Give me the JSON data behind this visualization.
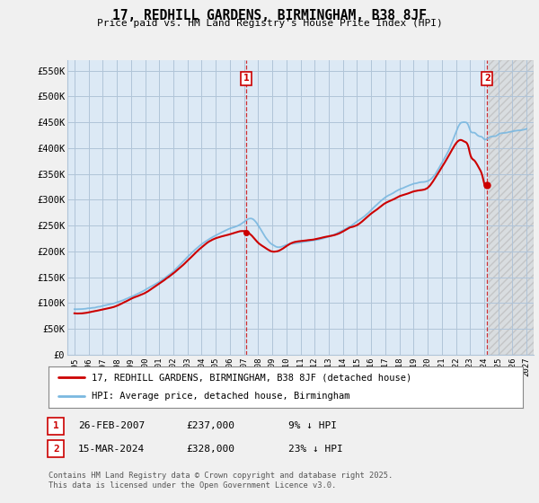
{
  "title": "17, REDHILL GARDENS, BIRMINGHAM, B38 8JF",
  "subtitle": "Price paid vs. HM Land Registry's House Price Index (HPI)",
  "ylabel_ticks": [
    "£0",
    "£50K",
    "£100K",
    "£150K",
    "£200K",
    "£250K",
    "£300K",
    "£350K",
    "£400K",
    "£450K",
    "£500K",
    "£550K"
  ],
  "ytick_values": [
    0,
    50000,
    100000,
    150000,
    200000,
    250000,
    300000,
    350000,
    400000,
    450000,
    500000,
    550000
  ],
  "ylim": [
    0,
    570000
  ],
  "xlim_start": 1994.5,
  "xlim_end": 2027.5,
  "bg_color": "#f0f0f0",
  "plot_bg_color": "#dce9f5",
  "future_bg_color": "#e8e8e8",
  "grid_color": "#b0c4d8",
  "hpi_color": "#7ab8e0",
  "price_color": "#cc0000",
  "marker1_x": 2007.15,
  "marker1_y": 237000,
  "marker2_x": 2024.21,
  "marker2_y": 328000,
  "legend_label1": "17, REDHILL GARDENS, BIRMINGHAM, B38 8JF (detached house)",
  "legend_label2": "HPI: Average price, detached house, Birmingham",
  "table_row1": [
    "1",
    "26-FEB-2007",
    "£237,000",
    "9% ↓ HPI"
  ],
  "table_row2": [
    "2",
    "15-MAR-2024",
    "£328,000",
    "23% ↓ HPI"
  ],
  "footer": "Contains HM Land Registry data © Crown copyright and database right 2025.\nThis data is licensed under the Open Government Licence v3.0.",
  "xtick_years": [
    1995,
    1996,
    1997,
    1998,
    1999,
    2000,
    2001,
    2002,
    2003,
    2004,
    2005,
    2006,
    2007,
    2008,
    2009,
    2010,
    2011,
    2012,
    2013,
    2014,
    2015,
    2016,
    2017,
    2018,
    2019,
    2020,
    2021,
    2022,
    2023,
    2024,
    2025,
    2026,
    2027
  ],
  "hpi_keypoints_x": [
    1995,
    1996,
    1997,
    1998,
    1999,
    2000,
    2001,
    2002,
    2003,
    2004,
    2005,
    2006,
    2007,
    2007.5,
    2008,
    2008.5,
    2009,
    2009.5,
    2010,
    2010.5,
    2011,
    2011.5,
    2012,
    2012.5,
    2013,
    2013.5,
    2014,
    2014.5,
    2015,
    2015.5,
    2016,
    2016.5,
    2017,
    2017.5,
    2018,
    2018.5,
    2019,
    2019.5,
    2020,
    2020.5,
    2021,
    2021.5,
    2022,
    2022.3,
    2022.6,
    2022.9,
    2023,
    2023.3,
    2023.6,
    2023.9,
    2024,
    2024.3,
    2024.6,
    2024.9,
    2025,
    2025.5,
    2026,
    2026.5,
    2027
  ],
  "hpi_keypoints_y": [
    88000,
    90000,
    95000,
    102000,
    112000,
    125000,
    142000,
    162000,
    190000,
    215000,
    232000,
    245000,
    258000,
    265000,
    252000,
    230000,
    215000,
    210000,
    215000,
    218000,
    220000,
    222000,
    225000,
    228000,
    232000,
    238000,
    245000,
    252000,
    262000,
    272000,
    285000,
    298000,
    310000,
    318000,
    325000,
    330000,
    335000,
    338000,
    340000,
    352000,
    375000,
    400000,
    435000,
    452000,
    455000,
    448000,
    440000,
    435000,
    428000,
    425000,
    422000,
    425000,
    428000,
    430000,
    432000,
    435000,
    438000,
    440000,
    443000
  ],
  "price_keypoints_x": [
    1995,
    1996,
    1997,
    1998,
    1999,
    2000,
    2001,
    2002,
    2003,
    2004,
    2005,
    2006,
    2007,
    2007.15,
    2007.5,
    2008,
    2008.5,
    2009,
    2009.5,
    2010,
    2010.5,
    2011,
    2011.5,
    2012,
    2012.5,
    2013,
    2013.5,
    2014,
    2014.5,
    2015,
    2015.5,
    2016,
    2016.5,
    2017,
    2017.5,
    2018,
    2018.5,
    2019,
    2019.5,
    2020,
    2020.5,
    2021,
    2021.5,
    2022,
    2022.3,
    2022.6,
    2022.9,
    2023,
    2023.3,
    2023.6,
    2023.9,
    2024,
    2024.21
  ],
  "price_keypoints_y": [
    80000,
    82000,
    88000,
    95000,
    108000,
    120000,
    138000,
    158000,
    182000,
    208000,
    225000,
    232000,
    238000,
    237000,
    230000,
    215000,
    205000,
    198000,
    200000,
    208000,
    215000,
    218000,
    220000,
    222000,
    225000,
    228000,
    232000,
    238000,
    245000,
    250000,
    260000,
    272000,
    282000,
    292000,
    298000,
    305000,
    310000,
    315000,
    318000,
    322000,
    340000,
    362000,
    385000,
    408000,
    415000,
    412000,
    400000,
    388000,
    375000,
    362000,
    342000,
    330000,
    328000
  ]
}
